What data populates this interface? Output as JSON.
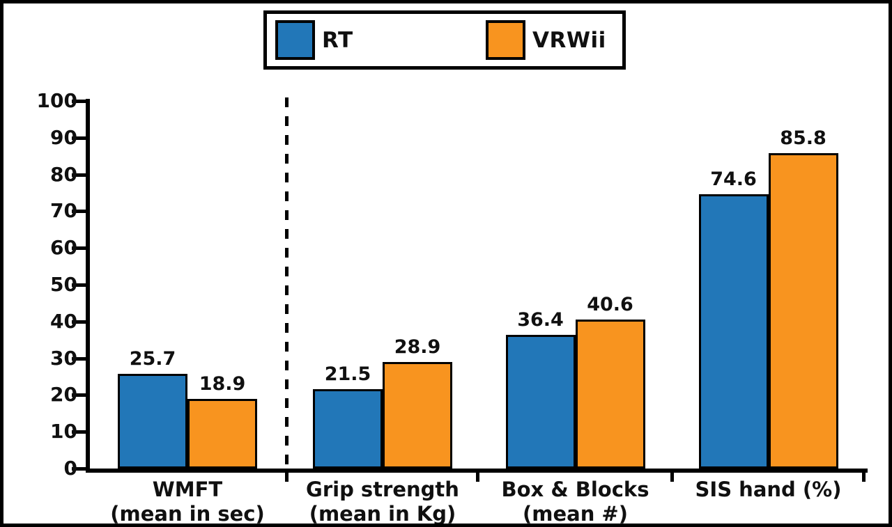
{
  "figure": {
    "background": "#ffffff",
    "border_color": "#000000",
    "text_color": "#101010"
  },
  "legend": {
    "items": [
      {
        "label": "RT",
        "color": "#2277B8",
        "icon": "legend-swatch"
      },
      {
        "label": "VRWii",
        "color": "#F8941F",
        "icon": "legend-swatch"
      }
    ]
  },
  "chart_data": {
    "type": "bar",
    "title": "",
    "xlabel": "",
    "ylabel": "",
    "categories": [
      {
        "lines": [
          "WMFT",
          "(mean in sec)"
        ]
      },
      {
        "lines": [
          "Grip strength",
          "(mean in Kg)"
        ]
      },
      {
        "lines": [
          "Box & Blocks",
          "(mean #)"
        ]
      },
      {
        "lines": [
          "SIS hand (%)"
        ]
      }
    ],
    "series": [
      {
        "name": "RT",
        "color": "#2277B8",
        "values": [
          25.7,
          21.5,
          36.4,
          74.6
        ]
      },
      {
        "name": "VRWii",
        "color": "#F8941F",
        "values": [
          18.9,
          28.9,
          40.6,
          85.8
        ]
      }
    ],
    "value_labels": [
      "25.7",
      "18.9",
      "21.5",
      "28.9",
      "36.4",
      "40.6",
      "74.6",
      "85.8"
    ],
    "ylim": [
      0,
      100
    ],
    "yticks": [
      0,
      10,
      20,
      30,
      40,
      50,
      60,
      70,
      80,
      90,
      100
    ],
    "grid": "off",
    "legend_position": "top-center",
    "separator": {
      "style": "dashed",
      "after_category_index": 0
    }
  }
}
